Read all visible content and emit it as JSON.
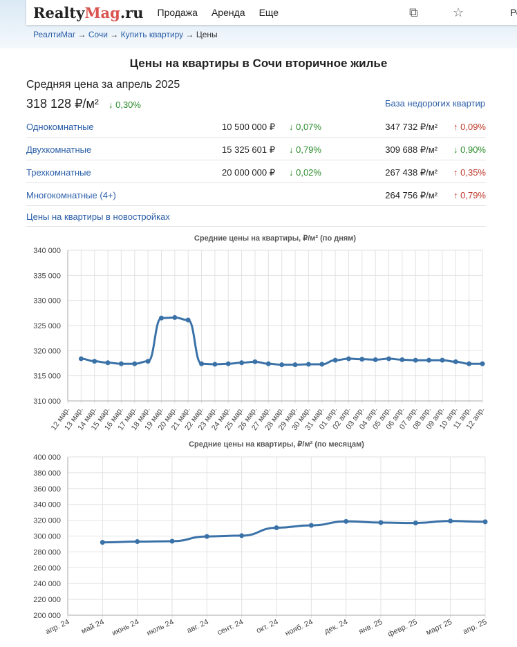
{
  "header": {
    "logo_a": "Realty",
    "logo_b": "Mag",
    "logo_c": ".ru",
    "nav": [
      "Продажа",
      "Аренда",
      "Еще"
    ],
    "region": "Реги"
  },
  "breadcrumb": [
    "РеалтиМаг",
    "Сочи",
    "Купить квартиру",
    "Цены"
  ],
  "title": "Цены на квартиры в Сочи вторичное жилье",
  "subtitle": "Средняя цена за апрель 2025",
  "avg_price": "318 128 ₽/м²",
  "avg_change": "↓ 0,30%",
  "cheap_link": "База недорогих квартир",
  "rows": [
    {
      "name": "Однокомнатные",
      "price": "10 500 000 ₽",
      "price_ch": "↓ 0,07%",
      "price_dir": "down",
      "sqm": "347 732 ₽/м²",
      "sqm_ch": "↑ 0,09%",
      "sqm_dir": "up"
    },
    {
      "name": "Двухкомнатные",
      "price": "15 325 601 ₽",
      "price_ch": "↓ 0,79%",
      "price_dir": "down",
      "sqm": "309 688 ₽/м²",
      "sqm_ch": "↓ 0,90%",
      "sqm_dir": "down"
    },
    {
      "name": "Трехкомнатные",
      "price": "20 000 000 ₽",
      "price_ch": "↓ 0,02%",
      "price_dir": "down",
      "sqm": "267 438 ₽/м²",
      "sqm_ch": "↑ 0,35%",
      "sqm_dir": "up"
    },
    {
      "name": "Многокомнатные (4+)",
      "price": "",
      "price_ch": "",
      "price_dir": "",
      "sqm": "264 756 ₽/м²",
      "sqm_ch": "↑ 0,79%",
      "sqm_dir": "up"
    }
  ],
  "new_link": "Цены на квартиры в новостройках",
  "chart_data": [
    {
      "type": "line",
      "title": "Средние цены на квартиры, ₽/м² (по дням)",
      "ylim": [
        310000,
        340000
      ],
      "yticks": [
        "310 000",
        "315 000",
        "320 000",
        "325 000",
        "330 000",
        "335 000",
        "340 000"
      ],
      "grid": true,
      "color": "#3a72a8",
      "categories": [
        "12 мар.",
        "13 мар.",
        "14 мар.",
        "15 мар.",
        "16 мар.",
        "17 мар.",
        "18 мар.",
        "19 мар.",
        "20 мар.",
        "21 мар.",
        "22 мар.",
        "23 мар.",
        "24 мар.",
        "25 мар.",
        "26 мар.",
        "27 мар.",
        "28 мар.",
        "29 мар.",
        "30 мар.",
        "31 мар.",
        "01 апр.",
        "02 апр.",
        "03 апр.",
        "04 апр.",
        "05 апр.",
        "06 апр.",
        "07 апр.",
        "08 апр.",
        "09 апр.",
        "10 апр.",
        "11 апр.",
        "12 апр."
      ],
      "values": [
        null,
        318400,
        317900,
        317600,
        317400,
        317400,
        317900,
        326500,
        326600,
        326100,
        317400,
        317300,
        317400,
        317600,
        317800,
        317400,
        317200,
        317200,
        317300,
        317300,
        318100,
        318400,
        318300,
        318200,
        318400,
        318200,
        318100,
        318100,
        318100,
        317800,
        317400,
        317400
      ]
    },
    {
      "type": "line",
      "title": "Средние цены на квартиры, ₽/м² (по месяцам)",
      "ylim": [
        200000,
        400000
      ],
      "yticks": [
        "200 000",
        "220 000",
        "240 000",
        "260 000",
        "280 000",
        "300 000",
        "320 000",
        "340 000",
        "360 000",
        "380 000",
        "400 000"
      ],
      "grid": true,
      "color": "#3a72a8",
      "categories": [
        "апр. 24",
        "май 24",
        "июнь 24",
        "июль 24",
        "авг. 24",
        "сент. 24",
        "окт. 24",
        "нояб. 24",
        "дек. 24",
        "янв. 25",
        "февр. 25",
        "март 25",
        "апр. 25"
      ],
      "values": [
        null,
        292000,
        293000,
        293500,
        299500,
        300500,
        310500,
        313500,
        318500,
        317000,
        316500,
        319000,
        318000
      ]
    }
  ]
}
